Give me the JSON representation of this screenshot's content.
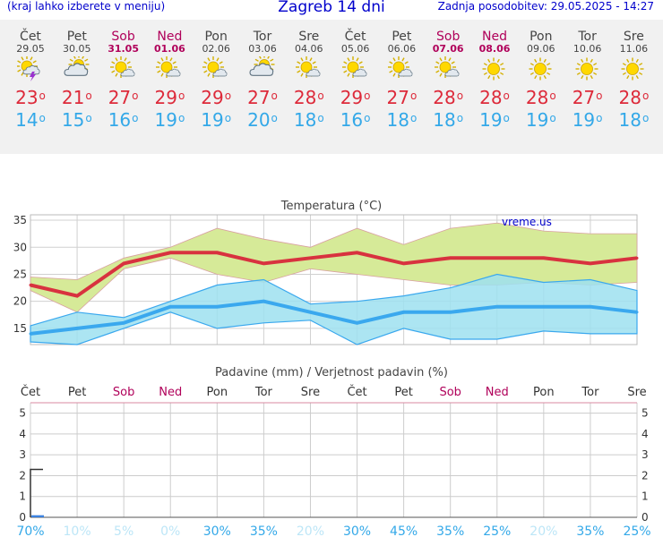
{
  "header": {
    "left_note": "(kraj lahko izberete v meniju)",
    "title": "Zagreb 14 dni",
    "updated": "Zadnja posodobitev: 29.05.2025 - 14:27"
  },
  "days": [
    {
      "name": "Čet",
      "date": "29.05",
      "weekend": false,
      "icon": "sun-cloud-lightning-icon",
      "max": "23",
      "min": "14"
    },
    {
      "name": "Pet",
      "date": "30.05",
      "weekend": false,
      "icon": "partly-cloudy-icon",
      "max": "21",
      "min": "15"
    },
    {
      "name": "Sob",
      "date": "31.05",
      "weekend": true,
      "icon": "sun-small-cloud-icon",
      "max": "27",
      "min": "16"
    },
    {
      "name": "Ned",
      "date": "01.06",
      "weekend": true,
      "icon": "sun-small-cloud-icon",
      "max": "29",
      "min": "19"
    },
    {
      "name": "Pon",
      "date": "02.06",
      "weekend": false,
      "icon": "sun-small-cloud-icon",
      "max": "29",
      "min": "19"
    },
    {
      "name": "Tor",
      "date": "03.06",
      "weekend": false,
      "icon": "partly-cloudy-icon",
      "max": "27",
      "min": "20"
    },
    {
      "name": "Sre",
      "date": "04.06",
      "weekend": false,
      "icon": "sun-small-cloud-icon",
      "max": "28",
      "min": "18"
    },
    {
      "name": "Čet",
      "date": "05.06",
      "weekend": false,
      "icon": "sun-small-cloud-icon",
      "max": "29",
      "min": "16"
    },
    {
      "name": "Pet",
      "date": "06.06",
      "weekend": false,
      "icon": "sun-small-cloud-icon",
      "max": "27",
      "min": "18"
    },
    {
      "name": "Sob",
      "date": "07.06",
      "weekend": true,
      "icon": "sun-small-cloud-icon",
      "max": "28",
      "min": "18"
    },
    {
      "name": "Ned",
      "date": "08.06",
      "weekend": true,
      "icon": "sun-icon",
      "max": "28",
      "min": "19"
    },
    {
      "name": "Pon",
      "date": "09.06",
      "weekend": false,
      "icon": "sun-icon",
      "max": "28",
      "min": "19"
    },
    {
      "name": "Tor",
      "date": "10.06",
      "weekend": false,
      "icon": "sun-icon",
      "max": "27",
      "min": "19"
    },
    {
      "name": "Sre",
      "date": "11.06",
      "weekend": false,
      "icon": "sun-icon",
      "max": "28",
      "min": "18"
    }
  ],
  "colors": {
    "max_line": "#d8323f",
    "min_line": "#3aa8ee",
    "max_band": "#d6ea98",
    "min_band": "#9ee0f0",
    "overlap_band": "#8ed8a0",
    "weekend": "#b0005a",
    "prob_weak": "#bde6f7",
    "prob_strong": "#33a8e8",
    "precip_bar": "#3b82e0"
  },
  "chart_data": [
    {
      "type": "line",
      "title": "Temperatura (°C)",
      "watermark": "vreme.us",
      "categories": [
        "29.05",
        "30.05",
        "31.05",
        "01.06",
        "02.06",
        "03.06",
        "04.06",
        "05.06",
        "06.06",
        "07.06",
        "08.06",
        "09.06",
        "10.06",
        "11.06"
      ],
      "ylim": [
        12,
        36
      ],
      "yticks": [
        15,
        20,
        25,
        30,
        35
      ],
      "grid": true,
      "series": [
        {
          "values": [
            23,
            21,
            27,
            29,
            29,
            27,
            28,
            29,
            27,
            28,
            28,
            28,
            27,
            28
          ]
        },
        {
          "values": [
            14,
            15,
            16,
            19,
            19,
            20,
            18,
            16,
            18,
            18,
            19,
            19,
            19,
            18
          ]
        }
      ],
      "max_band": {
        "upper": [
          24.5,
          24,
          28,
          30,
          33.5,
          31.5,
          30,
          33.5,
          30.5,
          33.5,
          34.5,
          33,
          32.5,
          32.5
        ],
        "lower": [
          22,
          18,
          26,
          28,
          25,
          23.5,
          26,
          25,
          24,
          23,
          23,
          23.5,
          23,
          23.5
        ]
      },
      "min_band": {
        "upper": [
          15.5,
          18,
          17,
          20,
          23,
          24,
          19.5,
          20,
          21,
          22.5,
          25,
          23.5,
          24,
          22
        ],
        "lower": [
          12.5,
          12,
          15,
          18,
          15,
          16,
          16.5,
          12,
          15,
          13,
          13,
          14.5,
          14,
          14
        ]
      }
    },
    {
      "type": "bar",
      "title": "Padavine (mm) / Verjetnost padavin (%)",
      "categories": [
        "Čet",
        "Pet",
        "Sob",
        "Ned",
        "Pon",
        "Tor",
        "Sre",
        "Čet",
        "Pet",
        "Sob",
        "Ned",
        "Pon",
        "Tor",
        "Sre"
      ],
      "weekend": [
        false,
        false,
        true,
        true,
        false,
        false,
        false,
        false,
        false,
        true,
        true,
        false,
        false,
        false
      ],
      "ylim": [
        0,
        5.5
      ],
      "yticks": [
        "0",
        "1",
        "2",
        "3",
        "4",
        "5"
      ],
      "grid": true,
      "precipitation_mm": [
        0.1,
        0,
        0,
        0,
        0,
        0,
        0,
        0,
        0,
        0,
        0,
        0,
        0,
        0
      ],
      "probability_marker": 2.3,
      "probability": [
        "70%",
        "10%",
        "5%",
        "0%",
        "30%",
        "35%",
        "20%",
        "30%",
        "45%",
        "35%",
        "25%",
        "20%",
        "35%",
        "25%"
      ],
      "probability_strong": [
        true,
        false,
        false,
        false,
        true,
        true,
        false,
        true,
        true,
        true,
        true,
        false,
        true,
        true
      ]
    }
  ]
}
